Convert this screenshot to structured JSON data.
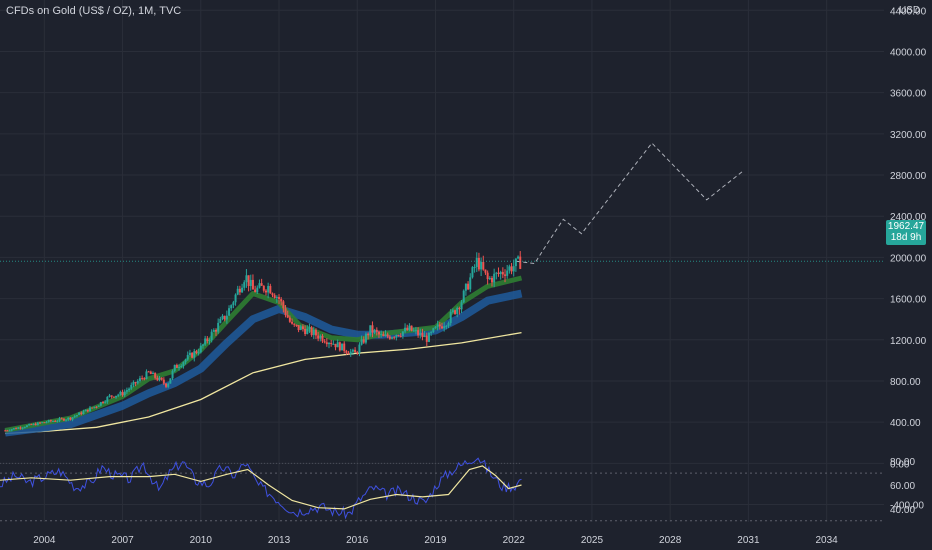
{
  "header": {
    "title": "CFDs on Gold (US$ / OZ), 1M, TVC",
    "currency": "USD"
  },
  "price_badge": {
    "price": "1962.47",
    "countdown": "18d 9h"
  },
  "colors": {
    "background": "#1e222d",
    "grid": "#2a2e39",
    "text": "#d1d4dc",
    "up": "#26a69a",
    "down": "#ef5350",
    "ema_fast": "#2e7d32",
    "ema_slow": "#1e5a9c",
    "sma_long": "#f0e6a0",
    "rsi": "#3f51e0",
    "rsi_ma": "#f0e6a0",
    "projection": "#d1d4dc",
    "badge": "#26a69a"
  },
  "chart_data": [
    {
      "type": "candlestick",
      "title": "CFDs on Gold (US$ / OZ), 1M, TVC",
      "y_unit": "USD",
      "y_ticks": [
        "4400.00",
        "4000.00",
        "3600.00",
        "3200.00",
        "2800.00",
        "2400.00",
        "2000.00",
        "1600.00",
        "1200.00",
        "800.00",
        "400.00",
        "0.00",
        "-400.00"
      ],
      "ylim": [
        -550,
        4500
      ],
      "x_ticks": [
        "2004",
        "2007",
        "2010",
        "2013",
        "2016",
        "2019",
        "2022",
        "2025",
        "2028",
        "2031",
        "2034"
      ],
      "xlim": [
        2002.3,
        2036.2
      ],
      "last_price": 1962.47,
      "close_approx": {
        "x": [
          2002.5,
          2004,
          2005,
          2006,
          2006.5,
          2007,
          2008,
          2008.7,
          2009,
          2010,
          2011,
          2011.7,
          2012,
          2012.6,
          2013,
          2013.5,
          2014,
          2015,
          2015.9,
          2016.5,
          2017,
          2018,
          2018.7,
          2019,
          2019.5,
          2020,
          2020.6,
          2021,
          2022.3
        ],
        "y": [
          320,
          400,
          440,
          560,
          650,
          680,
          880,
          760,
          930,
          1120,
          1450,
          1830,
          1680,
          1720,
          1600,
          1330,
          1300,
          1180,
          1060,
          1300,
          1220,
          1300,
          1210,
          1300,
          1400,
          1580,
          1970,
          1780,
          1962
        ]
      },
      "series": [
        {
          "name": "EMA fast",
          "x": [
            2002.5,
            2005,
            2007,
            2008,
            2009,
            2010,
            2011,
            2012,
            2013,
            2013.8,
            2015,
            2016,
            2017,
            2018,
            2019,
            2020,
            2021,
            2022.3
          ],
          "y": [
            320,
            440,
            650,
            820,
            900,
            1100,
            1380,
            1650,
            1560,
            1340,
            1220,
            1200,
            1260,
            1290,
            1320,
            1560,
            1720,
            1800
          ]
        },
        {
          "name": "EMA slow",
          "x": [
            2002.5,
            2005,
            2007,
            2008,
            2009,
            2010,
            2011,
            2012,
            2013,
            2014,
            2015,
            2016,
            2017,
            2018,
            2019,
            2020,
            2021,
            2022.3
          ],
          "y": [
            300,
            380,
            560,
            680,
            780,
            920,
            1170,
            1400,
            1500,
            1420,
            1300,
            1250,
            1250,
            1270,
            1290,
            1420,
            1580,
            1650
          ]
        },
        {
          "name": "SMA long",
          "x": [
            2002.5,
            2004,
            2006,
            2008,
            2010,
            2012,
            2014,
            2016,
            2018,
            2020,
            2022.3
          ],
          "y": [
            290,
            310,
            350,
            450,
            620,
            880,
            1010,
            1070,
            1110,
            1170,
            1270
          ]
        }
      ],
      "projection": {
        "x": [
          2022.1,
          2022.8,
          2023.2,
          2023.9,
          2024.6,
          2027.3,
          2029.4,
          2030.8
        ],
        "y": [
          1962,
          1940,
          2100,
          2370,
          2230,
          3110,
          2560,
          2840
        ]
      }
    },
    {
      "type": "line",
      "title": "",
      "y_ticks": [
        "80.00",
        "60.00",
        "40.00"
      ],
      "ylim": [
        29,
        91
      ],
      "reference_levels": [
        70,
        30
      ],
      "series": [
        {
          "name": "RSI",
          "x": [
            2002.3,
            2002.9,
            2003.4,
            2004,
            2004.6,
            2005.2,
            2005.8,
            2006.2,
            2006.7,
            2007.3,
            2007.8,
            2008.4,
            2008.8,
            2009.3,
            2009.8,
            2010.3,
            2010.8,
            2011.3,
            2011.7,
            2012.2,
            2012.7,
            2013.1,
            2013.6,
            2014.1,
            2014.6,
            2015.1,
            2015.7,
            2016.1,
            2016.6,
            2017.1,
            2017.6,
            2018.1,
            2018.6,
            2019.1,
            2019.6,
            2020.1,
            2020.6,
            2021.1,
            2021.6,
            2022.1,
            2022.3
          ],
          "y": [
            60,
            68,
            62,
            67,
            72,
            58,
            62,
            75,
            68,
            65,
            78,
            55,
            70,
            80,
            64,
            60,
            75,
            68,
            79,
            60,
            52,
            45,
            37,
            40,
            42,
            38,
            36,
            48,
            58,
            52,
            55,
            50,
            45,
            62,
            72,
            78,
            85,
            70,
            58,
            60,
            66
          ]
        },
        {
          "name": "RSI MA",
          "x": [
            2002.3,
            2003.5,
            2005,
            2006.5,
            2008,
            2009,
            2010,
            2011,
            2011.8,
            2012.6,
            2013.5,
            2014.5,
            2015.5,
            2016.5,
            2017.5,
            2018.5,
            2019.5,
            2020.3,
            2020.8,
            2021.3,
            2021.8,
            2022.3
          ],
          "y": [
            64,
            66,
            64,
            67,
            67,
            69,
            63,
            69,
            73,
            60,
            47,
            41,
            40,
            48,
            52,
            50,
            52,
            73,
            76,
            68,
            57,
            60
          ]
        }
      ]
    }
  ]
}
